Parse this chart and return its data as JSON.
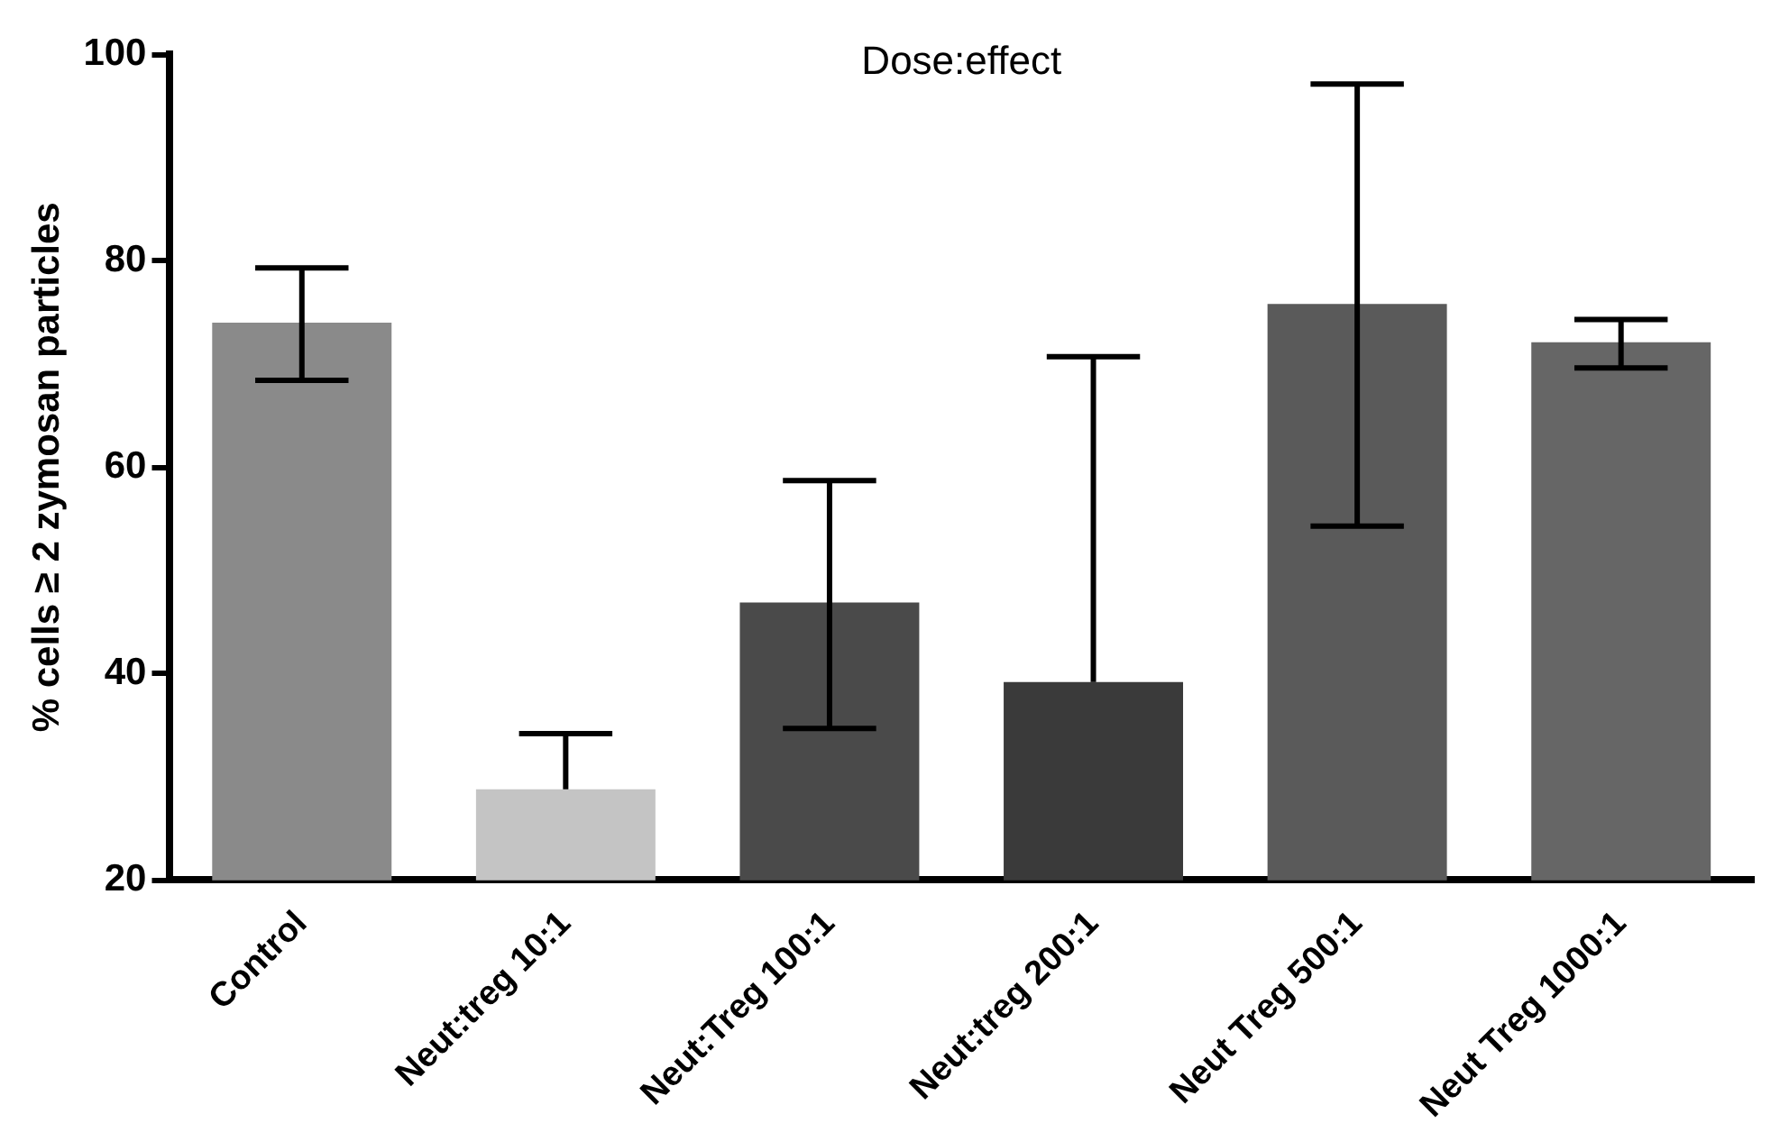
{
  "chart_data": {
    "type": "bar",
    "title": "Dose:effect",
    "ylabel": "% cells ≥ 2 zymosan particles",
    "categories": [
      "Control",
      "Neut:treg 10:1",
      "Neut:Treg 100:1",
      "Neut:treg 200:1",
      "Neut Treg 500:1",
      "Neut Treg 1000:1"
    ],
    "values": [
      74,
      28.8,
      46.9,
      39.2,
      75.8,
      72.1
    ],
    "errors": [
      [
        68.4,
        79.3
      ],
      [
        28.8,
        34.2
      ],
      [
        34.7,
        58.7
      ],
      [
        39.2,
        70.7
      ],
      [
        54.3,
        97.1
      ],
      [
        69.6,
        74.3
      ]
    ],
    "colors": [
      "#8a8a8a",
      "#c4c4c4",
      "#4a4a4a",
      "#3a3a3a",
      "#5a5a5a",
      "#666666"
    ],
    "ylim": [
      20,
      100
    ],
    "yticks": [
      20,
      40,
      60,
      80,
      100
    ],
    "grid": false,
    "legend": false
  }
}
